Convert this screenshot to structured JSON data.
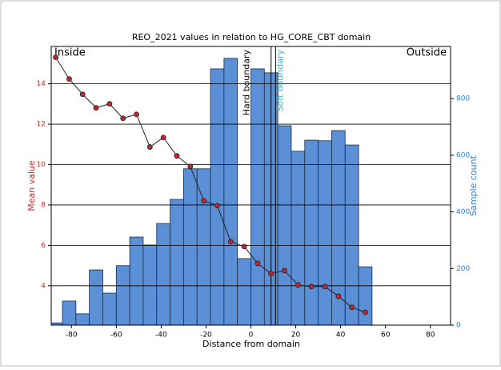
{
  "chart_data": {
    "type": "combo",
    "title": "REO_2021 values in relation to HG_CORE_CBT domain",
    "xlabel": "Distance from domain",
    "ylabel": "Mean value",
    "y2label": "Sample count",
    "xlim": [
      -89,
      89
    ],
    "xticks": [
      -80,
      -60,
      -40,
      -20,
      0,
      20,
      40,
      60,
      80
    ],
    "ylim": [
      2.05,
      15.85
    ],
    "yticks": [
      4,
      6,
      8,
      10,
      12,
      14
    ],
    "y2lim": [
      0,
      984
    ],
    "y2ticks": [
      0,
      200,
      400,
      600,
      800
    ],
    "grid": true,
    "ycolor": "#d62728",
    "y2color": "#2a7fd4",
    "side_labels": [
      "Inside",
      "Outside"
    ],
    "annotations": [
      {
        "text": "Hard boundary",
        "x": 9,
        "color": "#000000"
      },
      {
        "text": "Soft boundary",
        "x": 11,
        "color": "#3bb0c9"
      }
    ],
    "histogram": {
      "type": "histogram",
      "axis": "y2",
      "color": "#5b8fd6",
      "bins": [
        -90,
        -84,
        -78,
        -72,
        -66,
        -60,
        -54,
        -48,
        -42,
        -36,
        -30,
        -24,
        -18,
        -12,
        -6,
        0,
        6,
        12,
        18,
        24,
        30,
        36,
        42,
        48,
        54
      ],
      "values": [
        8,
        85,
        40,
        195,
        113,
        210,
        311,
        283,
        359,
        444,
        552,
        552,
        905,
        942,
        235,
        905,
        891,
        704,
        614,
        653,
        651,
        687,
        636,
        206
      ]
    },
    "line": {
      "type": "line",
      "color": "#c0272d",
      "x": [
        -87,
        -81,
        -75,
        -69,
        -63,
        -57,
        -51,
        -45,
        -39,
        -33,
        -27,
        -21,
        -15,
        -9,
        -3,
        3,
        9,
        15,
        21,
        27,
        33,
        39,
        45,
        51
      ],
      "values": [
        15.31,
        14.24,
        13.48,
        12.81,
        13.01,
        12.29,
        12.49,
        10.87,
        11.34,
        10.43,
        9.91,
        8.21,
        7.97,
        6.18,
        5.94,
        5.11,
        4.6,
        4.75,
        4.04,
        3.96,
        3.96,
        3.48,
        2.93,
        2.69
      ]
    }
  }
}
